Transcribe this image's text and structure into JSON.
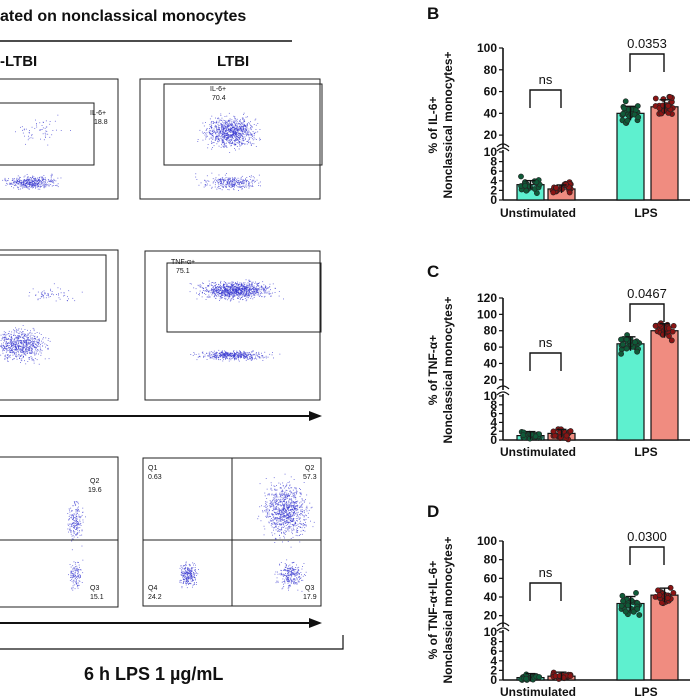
{
  "header": {
    "title": "ated on nonclassical monocytes",
    "group_left": "-LTBI",
    "group_right": "LTBI",
    "footer": "6 h LPS 1 µg/mL"
  },
  "flow_gates": {
    "il6_left": {
      "label": "IL-6+",
      "value": "18.8"
    },
    "il6_right": {
      "label": "IL-6+",
      "value": "70.4"
    },
    "tnf_right": {
      "label": "TNF-α+",
      "value": "75.1"
    }
  },
  "quadrants": {
    "left": {
      "q2_label": "Q2",
      "q2_value": "19.6",
      "q3_label": "Q3",
      "q3_value": "15.1"
    },
    "right": {
      "q1_label": "Q1",
      "q1_value": "0.63",
      "q2_label": "Q2",
      "q2_value": "57.3",
      "q3_label": "Q3",
      "q3_value": "17.9",
      "q4_label": "Q4",
      "q4_value": "24.2"
    }
  },
  "colors": {
    "non_ltbi": "#5ef0cf",
    "ltbi": "#f08c80",
    "dot_dark": "#0f5a38",
    "dot_red": "#8a1414",
    "flow_dot": "#3a3ad0"
  },
  "chart_data": [
    {
      "panel": "B",
      "type": "bar",
      "ylabel_line1": "% of IL-6+",
      "ylabel_line2": "Nonclassical monocytes+",
      "categories": [
        "Unstimulated",
        "LPS"
      ],
      "y_lower_ticks": [
        "0",
        "2",
        "4",
        "6",
        "8",
        "10"
      ],
      "y_upper_ticks": [
        "20",
        "40",
        "60",
        "80",
        "100"
      ],
      "ylim_lower": [
        0,
        10
      ],
      "ylim_upper": [
        10,
        100
      ],
      "series": [
        {
          "values": [
            3.2,
            40
          ]
        },
        {
          "values": [
            2.3,
            46
          ]
        }
      ],
      "annotations": [
        {
          "text": "ns",
          "group": "Unstimulated"
        },
        {
          "text": "0.0353",
          "group": "LPS"
        }
      ]
    },
    {
      "panel": "C",
      "type": "bar",
      "ylabel_line1": "% of TNF-α+",
      "ylabel_line2": "Nonclassical monocytes+",
      "categories": [
        "Unstimulated",
        "LPS"
      ],
      "y_lower_ticks": [
        "0",
        "2",
        "4",
        "6",
        "8",
        "10"
      ],
      "y_upper_ticks": [
        "20",
        "40",
        "60",
        "80",
        "100",
        "120"
      ],
      "ylim_lower": [
        0,
        10
      ],
      "ylim_upper": [
        10,
        120
      ],
      "series": [
        {
          "values": [
            1.0,
            64
          ]
        },
        {
          "values": [
            1.5,
            80
          ]
        }
      ],
      "annotations": [
        {
          "text": "ns",
          "group": "Unstimulated"
        },
        {
          "text": "0.0467",
          "group": "LPS"
        }
      ]
    },
    {
      "panel": "D",
      "type": "bar",
      "ylabel_line1": "% of TNF-α+IL-6+",
      "ylabel_line2": "Nonclassical monocytes+",
      "categories": [
        "Unstimulated",
        "LPS"
      ],
      "y_lower_ticks": [
        "0",
        "2",
        "4",
        "6",
        "8",
        "10"
      ],
      "y_upper_ticks": [
        "20",
        "40",
        "60",
        "80",
        "100"
      ],
      "ylim_lower": [
        0,
        10
      ],
      "ylim_upper": [
        10,
        100
      ],
      "series": [
        {
          "values": [
            0.5,
            33
          ]
        },
        {
          "values": [
            0.8,
            42
          ]
        }
      ],
      "annotations": [
        {
          "text": "ns",
          "group": "Unstimulated"
        },
        {
          "text": "0.0300",
          "group": "LPS"
        }
      ]
    }
  ]
}
